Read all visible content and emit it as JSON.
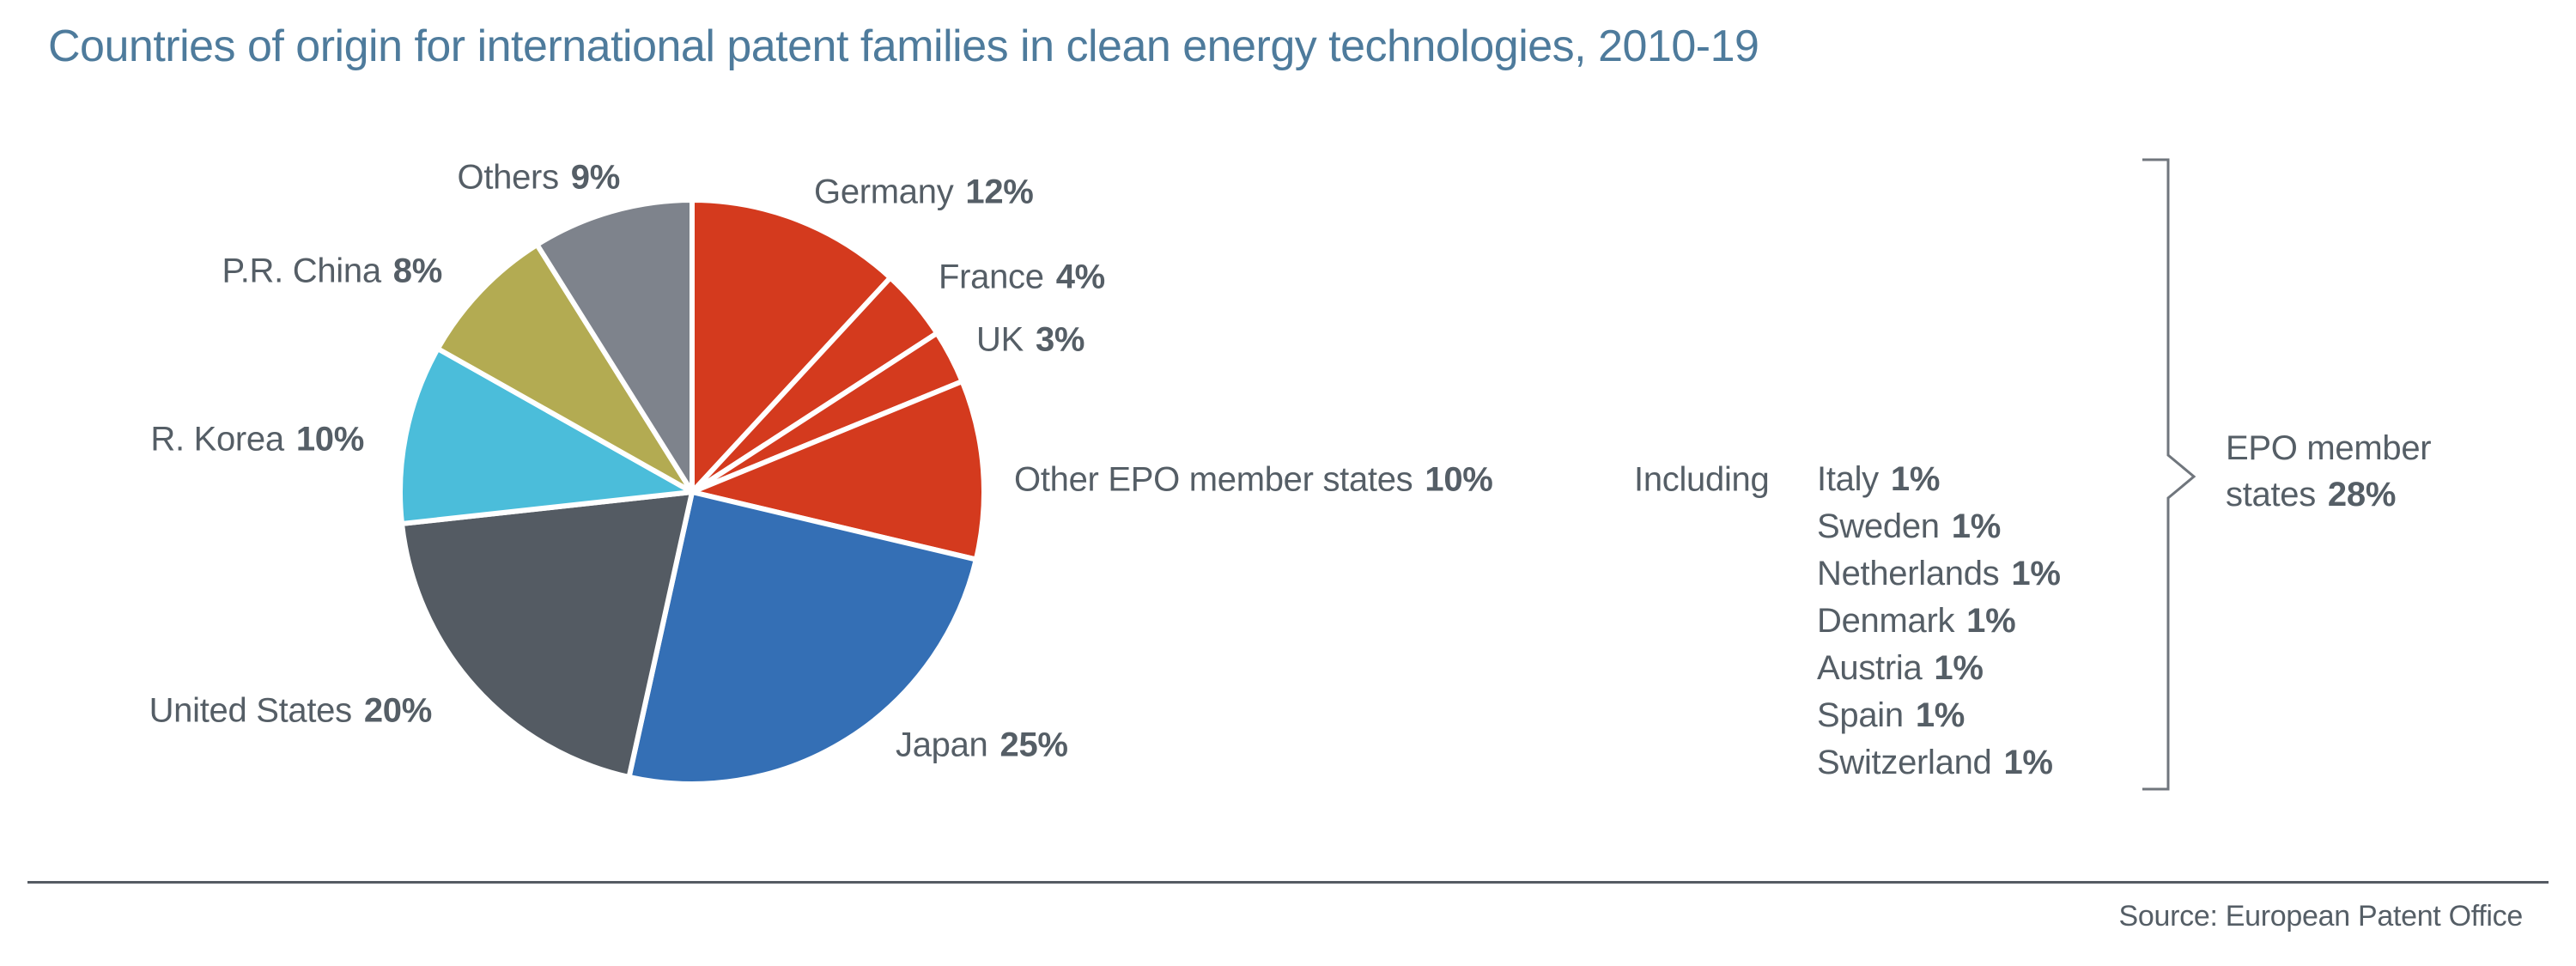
{
  "chart_data": {
    "type": "pie",
    "title": "Countries of origin for international patent families in clean energy technologies, 2010-19",
    "unit": "%",
    "start_angle_deg": -90,
    "direction": "clockwise",
    "slices": [
      {
        "label": "Germany",
        "value": 12,
        "pct": "12%",
        "color": "#d43a1e"
      },
      {
        "label": "France",
        "value": 4,
        "pct": "4%",
        "color": "#d43a1e"
      },
      {
        "label": "UK",
        "value": 3,
        "pct": "3%",
        "color": "#d43a1e"
      },
      {
        "label": "Other EPO member states",
        "value": 10,
        "pct": "10%",
        "color": "#d43a1e"
      },
      {
        "label": "Japan",
        "value": 25,
        "pct": "25%",
        "color": "#346fb5"
      },
      {
        "label": "United States",
        "value": 20,
        "pct": "20%",
        "color": "#545b63"
      },
      {
        "label": "R. Korea",
        "value": 10,
        "pct": "10%",
        "color": "#4bbdda"
      },
      {
        "label": "P.R. China",
        "value": 8,
        "pct": "8%",
        "color": "#b3ab52"
      },
      {
        "label": "Others",
        "value": 9,
        "pct": "9%",
        "color": "#7e838c"
      }
    ],
    "annotations": {
      "including_label": "Including",
      "included_countries": [
        {
          "label": "Italy",
          "pct": "1%"
        },
        {
          "label": "Sweden",
          "pct": "1%"
        },
        {
          "label": "Netherlands",
          "pct": "1%"
        },
        {
          "label": "Denmark",
          "pct": "1%"
        },
        {
          "label": "Austria",
          "pct": "1%"
        },
        {
          "label": "Spain",
          "pct": "1%"
        },
        {
          "label": "Switzerland",
          "pct": "1%"
        }
      ],
      "bracket_label_line1": "EPO member",
      "bracket_label_line2": "states",
      "bracket_pct": "28%"
    }
  },
  "source": "Source: European Patent Office",
  "colors": {
    "title": "#4e7b9c",
    "label_text": "#555e66",
    "bracket_line": "#70767d",
    "rule": "#555b63",
    "slice_divider": "#ffffff"
  }
}
